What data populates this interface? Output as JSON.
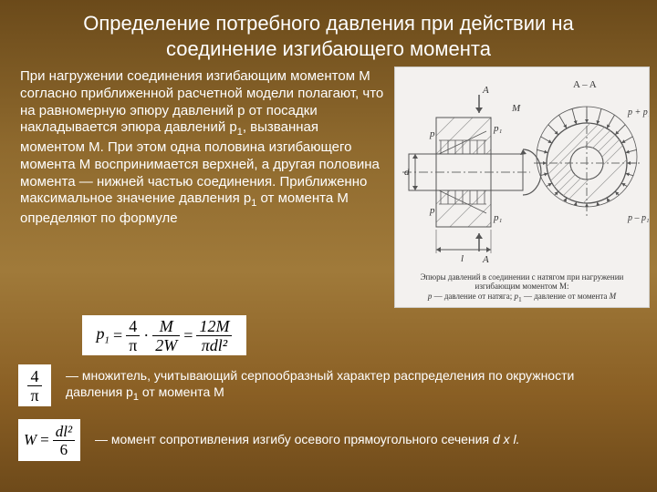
{
  "title": "Определение потребного давления  при действии на соединение изгибающего момента",
  "body_html": "При нагружении соединения изгибающим моментом М согласно приближенной расчетной модели полагают, что на равномерную эпюру давлений р от посадки накладывается эпюра давлений р<span class='sub'>1</span>, вызванная моментом М. При этом одна половина изгибающего момента М воспринимается верхней, а другая половина момента — нижней частью соединения. Приближенно максимальное значение давления р<span class='sub'>1</span> от момента М определяют по формуле",
  "fig": {
    "background": "#f3f1ef",
    "stroke": "#555555",
    "hatch": "#9a9a9a",
    "dash_dot": "#6e6e6e",
    "label_color": "#333333",
    "caption_line1": "Эпюры давлений в соединении с натягом при нагружении изгибающим моментом М:",
    "caption_line2_html": "<i>p</i> — давление от натяга;  <i>p</i><sub>1</sub> — давление от момента <i>M</i>",
    "labels": {
      "A_top": "A",
      "A_bot": "A",
      "AA": "A – A",
      "M": "M",
      "l": "l",
      "d": "d",
      "p": "p",
      "p1": "p₁",
      "pp1top": "p + p₁",
      "pp1bot": "p – p₁"
    }
  },
  "p1_formula": {
    "lhs": "p",
    "lhs_sub": "1",
    "a_num": "4",
    "a_den": "π",
    "mid": "·",
    "b_num": "M",
    "b_den": "2W",
    "c_num": "12M",
    "c_den": "πdl²"
  },
  "frac_4pi": {
    "num": "4",
    "den": "π"
  },
  "desc1_html": "— множитель, учитывающий серпообразный характер распределения по окружности давления р<span class='sub'>1</span> от момента М",
  "W_formula": {
    "lhs": "W",
    "num": "dl²",
    "den": "6"
  },
  "desc2_html": "— момент сопротивления изгибу осевого прямоугольного сечения <span class='ital'>d x l.</span>"
}
